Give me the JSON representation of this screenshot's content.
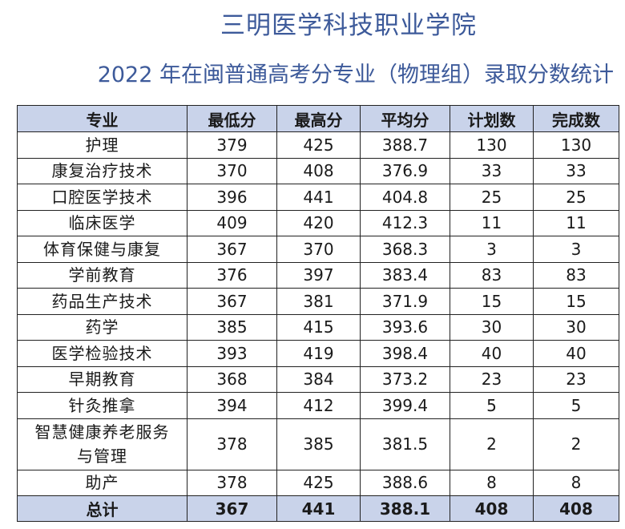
{
  "title": "三明医学科技职业学院",
  "subtitle": "2022 年在闽普通高考分专业（物理组）录取分数统计",
  "table": {
    "headers": [
      "专业",
      "最低分",
      "最高分",
      "平均分",
      "计划数",
      "完成数"
    ],
    "rows": [
      {
        "major": "护理",
        "min": "379",
        "max": "425",
        "avg": "388.7",
        "plan": "130",
        "done": "130"
      },
      {
        "major": "康复治疗技术",
        "min": "370",
        "max": "408",
        "avg": "376.9",
        "plan": "33",
        "done": "33"
      },
      {
        "major": "口腔医学技术",
        "min": "396",
        "max": "441",
        "avg": "404.8",
        "plan": "25",
        "done": "25"
      },
      {
        "major": "临床医学",
        "min": "409",
        "max": "420",
        "avg": "412.3",
        "plan": "11",
        "done": "11"
      },
      {
        "major": "体育保健与康复",
        "min": "367",
        "max": "370",
        "avg": "368.3",
        "plan": "3",
        "done": "3"
      },
      {
        "major": "学前教育",
        "min": "376",
        "max": "397",
        "avg": "383.4",
        "plan": "83",
        "done": "83"
      },
      {
        "major": "药品生产技术",
        "min": "367",
        "max": "381",
        "avg": "371.9",
        "plan": "15",
        "done": "15"
      },
      {
        "major": "药学",
        "min": "385",
        "max": "415",
        "avg": "393.6",
        "plan": "30",
        "done": "30"
      },
      {
        "major": "医学检验技术",
        "min": "393",
        "max": "419",
        "avg": "398.4",
        "plan": "40",
        "done": "40"
      },
      {
        "major": "早期教育",
        "min": "368",
        "max": "384",
        "avg": "373.2",
        "plan": "23",
        "done": "23"
      },
      {
        "major": "针灸推拿",
        "min": "394",
        "max": "412",
        "avg": "399.4",
        "plan": "5",
        "done": "5"
      },
      {
        "major": "智慧健康养老服务与管理",
        "min": "378",
        "max": "385",
        "avg": "381.5",
        "plan": "2",
        "done": "2"
      },
      {
        "major": "助产",
        "min": "378",
        "max": "425",
        "avg": "388.6",
        "plan": "8",
        "done": "8"
      }
    ],
    "total": {
      "label": "总计",
      "min": "367",
      "max": "441",
      "avg": "388.1",
      "plan": "408",
      "done": "408"
    }
  },
  "colors": {
    "title": "#3d5a9a",
    "header_bg": "#c9d3ea",
    "border": "#222222"
  }
}
